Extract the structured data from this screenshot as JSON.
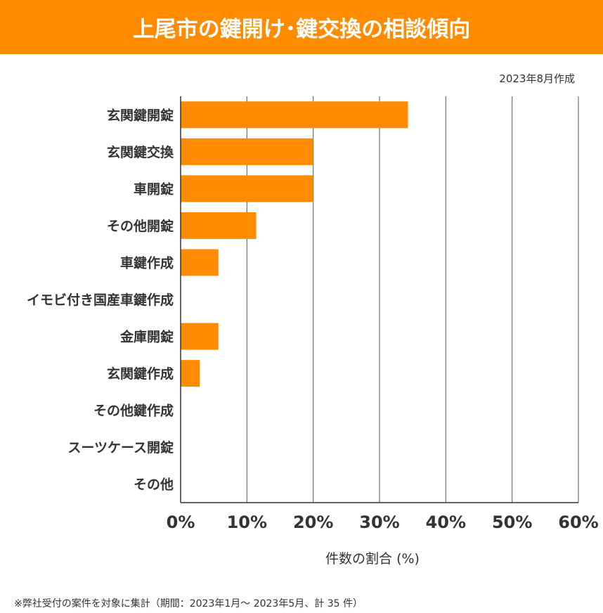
{
  "chart_data": {
    "type": "bar",
    "orientation": "horizontal",
    "title": "上尾市の鍵開け･鍵交換の相談傾向",
    "note": "2023年8月作成",
    "categories": [
      "玄関鍵開錠",
      "玄関鍵交換",
      "車開錠",
      "その他開錠",
      "車鍵作成",
      "イモビ付き国産車鍵作成",
      "金庫開錠",
      "玄関鍵作成",
      "その他鍵作成",
      "スーツケース開錠",
      "その他"
    ],
    "values": [
      34.3,
      20.0,
      20.0,
      11.4,
      5.7,
      0,
      5.7,
      2.9,
      0,
      0,
      0
    ],
    "xlabel": "件数の割合 (%)",
    "xlim": [
      0,
      60
    ],
    "ticks": [
      "0%",
      "10%",
      "20%",
      "30%",
      "40%",
      "50%",
      "60%"
    ],
    "grid": true,
    "bar_color": "#ff8c00",
    "footnote": "※弊社受付の案件を対象に集計（期間：2023年1月～ 2023年5月、計 35 件）"
  }
}
